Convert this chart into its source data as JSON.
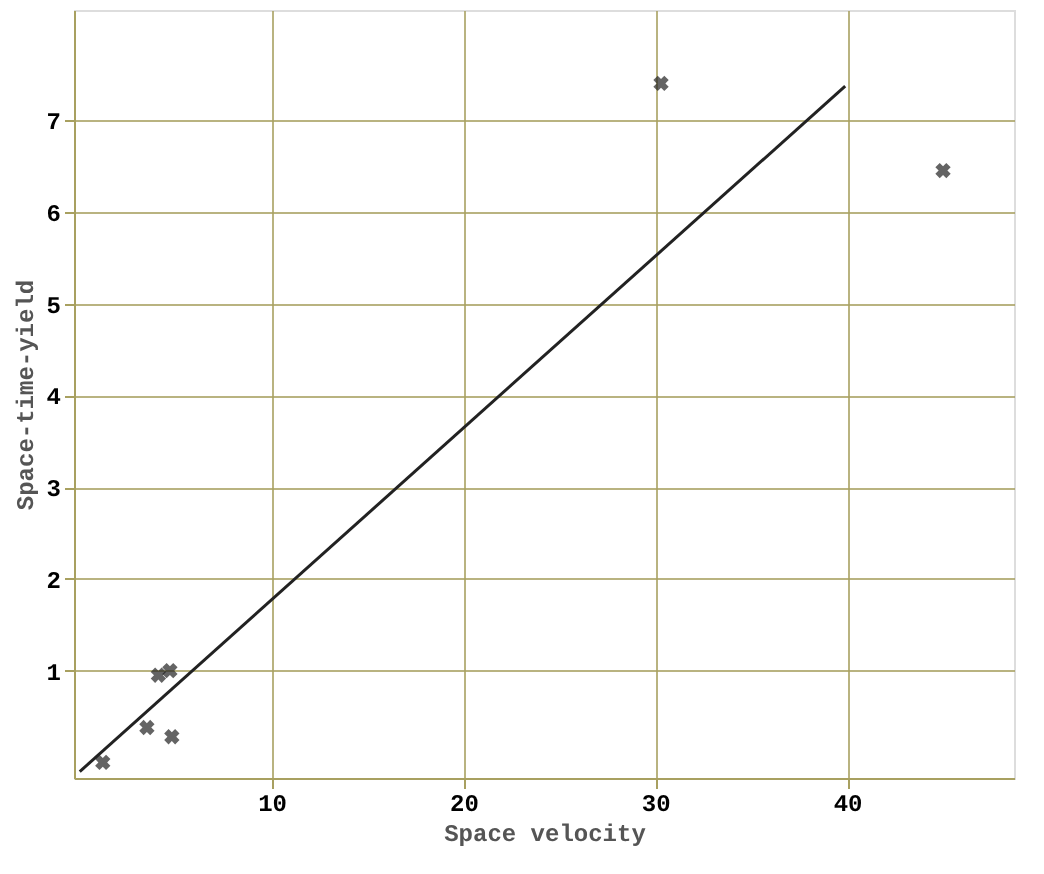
{
  "chart_data": {
    "type": "scatter",
    "xlabel": "Space velocity",
    "ylabel": "Space-time-yield",
    "xlim": [
      -0.3,
      48.7
    ],
    "ylim": [
      -0.17,
      8.2
    ],
    "xticks": [
      10,
      20,
      30,
      40
    ],
    "yticks": [
      1,
      2,
      3,
      4,
      5,
      6,
      7
    ],
    "grid": true,
    "series": [
      {
        "marker": "cross",
        "color": "#222222",
        "x": [
          1.2,
          3.5,
          4.1,
          4.7,
          4.8,
          30.3,
          45.0
        ],
        "values": [
          0.0,
          0.38,
          0.95,
          1.0,
          0.28,
          7.4,
          6.45
        ]
      },
      {
        "type": "line",
        "marker": "none",
        "line_style": "solid",
        "color": "#222222",
        "x": [
          0,
          39.9
        ],
        "values": [
          -0.1,
          7.37
        ]
      }
    ]
  }
}
